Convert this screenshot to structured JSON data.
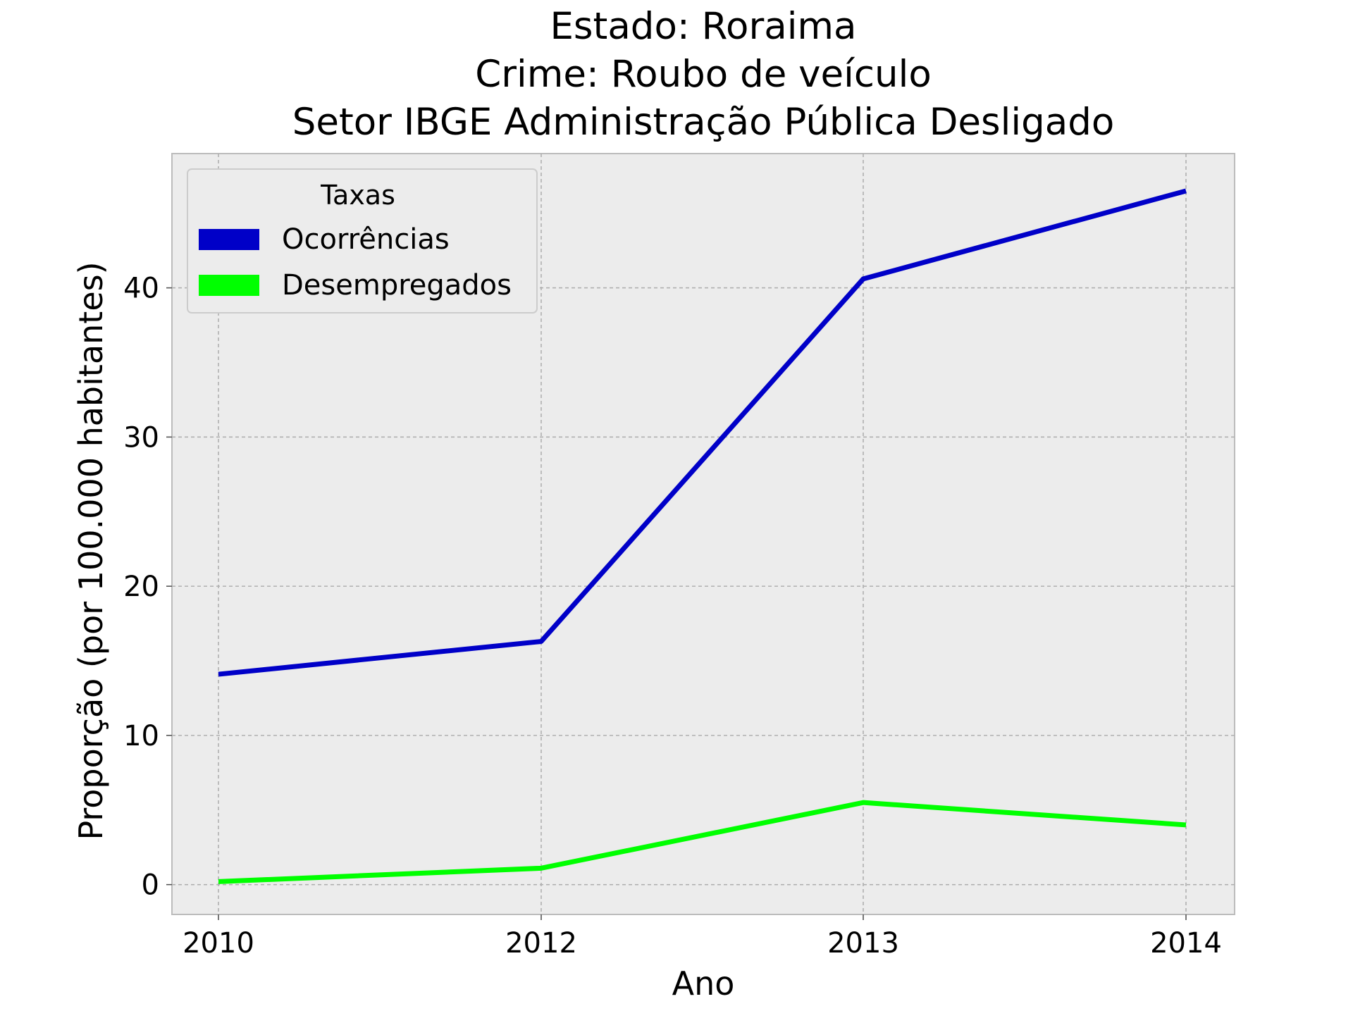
{
  "chart_data": {
    "type": "line",
    "title_lines": [
      "Estado: Roraima",
      "Crime: Roubo de veículo",
      "Setor IBGE  Administração Pública   Desligado"
    ],
    "xlabel": "Ano",
    "ylabel": "Proporção (por 100.000 habitantes)",
    "categories": [
      "2010",
      "2012",
      "2013",
      "2014"
    ],
    "yticks": [
      "0",
      "10",
      "20",
      "30",
      "40"
    ],
    "ylim": [
      -2,
      49
    ],
    "grid": true,
    "grid_style": "dashed",
    "background_color": "#ececec",
    "legend": {
      "title": "Taxas",
      "placement": "top-left"
    },
    "series": [
      {
        "name": "Ocorrências",
        "color": "#0000c8",
        "values": [
          14.1,
          16.3,
          40.6,
          46.5
        ]
      },
      {
        "name": "Desempregados",
        "color": "#00ff00",
        "values": [
          0.2,
          1.1,
          5.5,
          4.0
        ]
      }
    ]
  }
}
